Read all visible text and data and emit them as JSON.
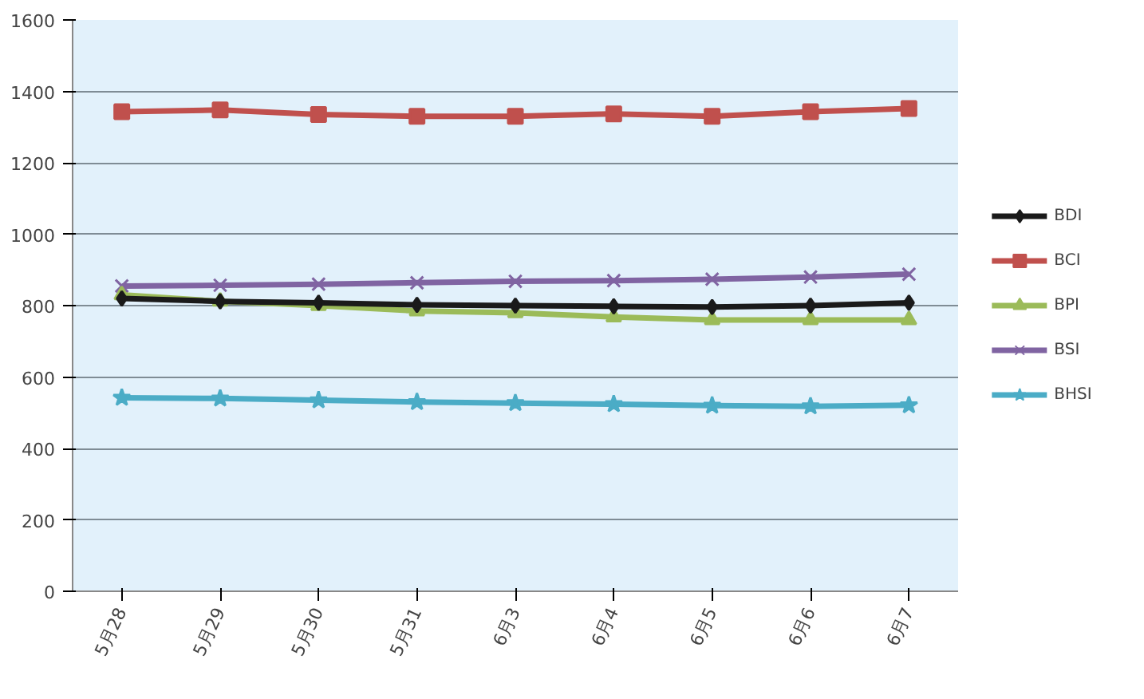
{
  "chart_data": {
    "type": "line",
    "categories": [
      "5月28",
      "5月29",
      "5月30",
      "5月31",
      "6月3",
      "6月4",
      "6月5",
      "6月6",
      "6月7"
    ],
    "ylim": [
      0,
      1600
    ],
    "yticks": [
      0,
      200,
      400,
      600,
      800,
      1000,
      1200,
      1400,
      1600
    ],
    "grid": "y",
    "legend": "right",
    "line_style": "solid",
    "series": [
      {
        "name": "BDI",
        "color": "#1a1a1a",
        "marker": "diamond",
        "values": [
          820,
          812,
          808,
          802,
          800,
          798,
          796,
          800,
          808
        ]
      },
      {
        "name": "BCI",
        "color": "#c0504d",
        "marker": "square",
        "values": [
          1343,
          1348,
          1335,
          1330,
          1330,
          1337,
          1330,
          1343,
          1352
        ]
      },
      {
        "name": "BPI",
        "color": "#9bbb59",
        "marker": "triangle",
        "values": [
          830,
          812,
          800,
          785,
          780,
          768,
          760,
          760,
          760
        ]
      },
      {
        "name": "BSI",
        "color": "#8064a2",
        "marker": "cross",
        "values": [
          855,
          857,
          860,
          864,
          868,
          870,
          874,
          880,
          888
        ]
      },
      {
        "name": "BHSI",
        "color": "#4bacc6",
        "marker": "star",
        "values": [
          542,
          540,
          535,
          530,
          527,
          524,
          520,
          518,
          521
        ]
      }
    ]
  }
}
